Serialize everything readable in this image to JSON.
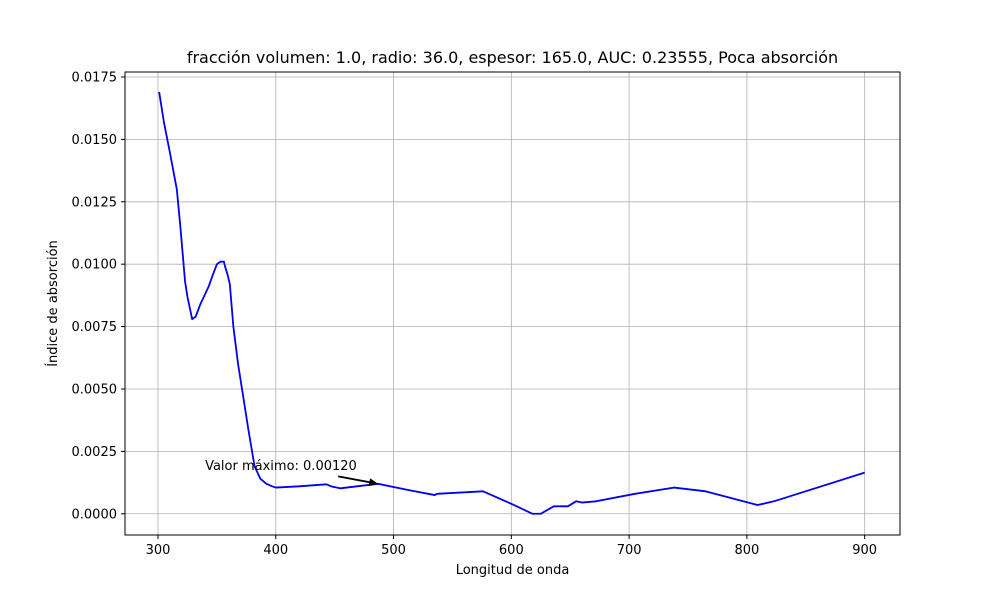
{
  "chart_data": {
    "type": "line",
    "title": "fracción volumen: 1.0, radio: 36.0, espesor: 165.0, AUC: 0.23555, Poca absorción",
    "xlabel": "Longitud de onda",
    "ylabel": "Índice de absorción",
    "xlim": [
      272,
      930
    ],
    "ylim": [
      -0.00085,
      0.0177
    ],
    "xticks": [
      300,
      400,
      500,
      600,
      700,
      800,
      900
    ],
    "xtick_labels": [
      "300",
      "400",
      "500",
      "600",
      "700",
      "800",
      "900"
    ],
    "yticks": [
      0.0,
      0.0025,
      0.005,
      0.0075,
      0.01,
      0.0125,
      0.015,
      0.0175
    ],
    "ytick_labels": [
      "0.0000",
      "0.0025",
      "0.0050",
      "0.0075",
      "0.0100",
      "0.0125",
      "0.0150",
      "0.0175"
    ],
    "grid": true,
    "series": [
      {
        "color": "#0000ee",
        "x": [
          301,
          305,
          310,
          316,
          319,
          323,
          325,
          329,
          332,
          336,
          340,
          343,
          346,
          350,
          353,
          356,
          357,
          359,
          361,
          364,
          368,
          373,
          377,
          382,
          387,
          392,
          397,
          400,
          420,
          443,
          447,
          455,
          469,
          487,
          513,
          535,
          537,
          576,
          600,
          618,
          625,
          636,
          648,
          655,
          660,
          672,
          705,
          738,
          765,
          809,
          823,
          900
        ],
        "y": [
          0.0169,
          0.0157,
          0.0145,
          0.013,
          0.0115,
          0.0093,
          0.0087,
          0.0078,
          0.0079,
          0.0084,
          0.0088,
          0.0091,
          0.0095,
          0.01,
          0.0101,
          0.0101,
          0.0099,
          0.0096,
          0.0092,
          0.0075,
          0.006,
          0.0045,
          0.0033,
          0.0019,
          0.0014,
          0.0012,
          0.0011,
          0.00105,
          0.0011,
          0.00118,
          0.0011,
          0.00102,
          0.0011,
          0.0012,
          0.00095,
          0.00075,
          0.0008,
          0.0009,
          0.0004,
          0.0,
          0.0,
          0.0003,
          0.0003,
          0.0005,
          0.00045,
          0.0005,
          0.0008,
          0.00105,
          0.0009,
          0.00035,
          0.0005,
          0.00165
        ]
      }
    ],
    "annotation": {
      "text": "Valor máximo: 0.00120",
      "text_x": 340,
      "text_y": 0.00175,
      "arrow_from_x": 453,
      "arrow_from_y": 0.0015,
      "arrow_to_x": 487,
      "arrow_to_y": 0.0012
    }
  }
}
